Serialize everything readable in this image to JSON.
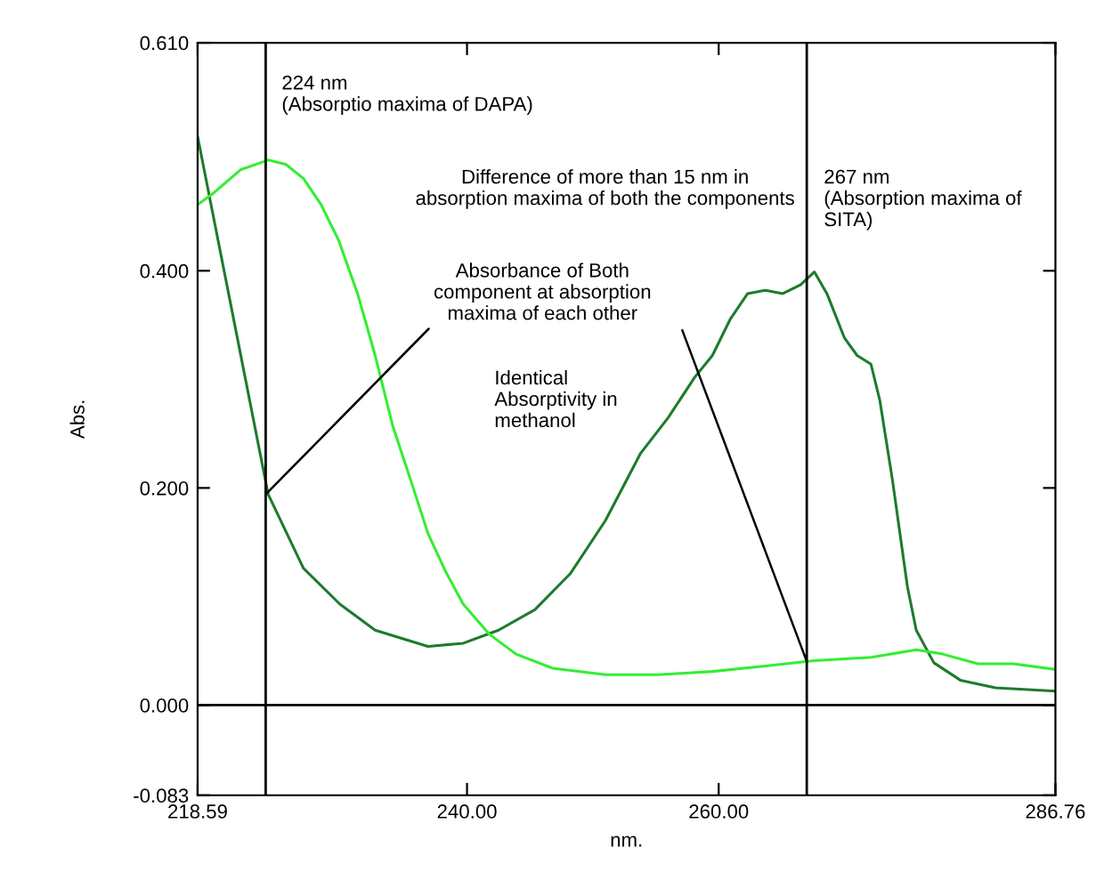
{
  "chart_data": {
    "type": "line",
    "xlabel": "nm.",
    "ylabel": "Abs.",
    "xlim": [
      218.59,
      286.76
    ],
    "ylim": [
      -0.083,
      0.61
    ],
    "xticks": [
      {
        "value": 218.59,
        "label": "218.59"
      },
      {
        "value": 240,
        "label": "240.00"
      },
      {
        "value": 260,
        "label": "260.00"
      },
      {
        "value": 286.76,
        "label": "286.76"
      }
    ],
    "yticks": [
      {
        "value": -0.083,
        "label": "-0.083"
      },
      {
        "value": 0,
        "label": "0.000"
      },
      {
        "value": 0.2,
        "label": "0.200"
      },
      {
        "value": 0.4,
        "label": "0.400"
      },
      {
        "value": 0.61,
        "label": "0.610"
      }
    ],
    "grid": false,
    "legend": false,
    "marker": "none",
    "line_style": "solid",
    "series": [
      {
        "color": "#1e7b2c",
        "x": [
          218.6,
          224.2,
          227.0,
          229.9,
          232.7,
          236.9,
          239.7,
          242.5,
          245.4,
          248.2,
          251.0,
          253.8,
          256.0,
          258.1,
          259.5,
          260.9,
          262.3,
          263.7,
          265.1,
          266.5,
          267.6,
          268.6,
          270.0,
          271.0,
          272.1,
          272.8,
          273.8,
          275.0,
          275.7,
          277.1,
          279.2,
          282.0,
          286.7
        ],
        "values": [
          0.523,
          0.194,
          0.126,
          0.093,
          0.069,
          0.054,
          0.057,
          0.069,
          0.088,
          0.121,
          0.17,
          0.232,
          0.265,
          0.302,
          0.322,
          0.355,
          0.379,
          0.382,
          0.379,
          0.387,
          0.399,
          0.379,
          0.338,
          0.322,
          0.314,
          0.281,
          0.208,
          0.109,
          0.069,
          0.039,
          0.023,
          0.016,
          0.013
        ]
      },
      {
        "color": "#33ee33",
        "x": [
          218.6,
          219.9,
          222.0,
          224.2,
          225.6,
          227.0,
          228.4,
          229.8,
          231.3,
          232.7,
          234.1,
          235.5,
          236.9,
          238.3,
          239.7,
          241.8,
          243.9,
          246.8,
          251.0,
          255.2,
          259.5,
          263.7,
          267.6,
          272.1,
          275.7,
          277.8,
          280.6,
          283.4,
          286.7
        ],
        "values": [
          0.461,
          0.472,
          0.493,
          0.502,
          0.498,
          0.485,
          0.461,
          0.428,
          0.379,
          0.322,
          0.257,
          0.208,
          0.158,
          0.123,
          0.093,
          0.065,
          0.047,
          0.034,
          0.028,
          0.028,
          0.031,
          0.036,
          0.041,
          0.044,
          0.051,
          0.047,
          0.038,
          0.038,
          0.033
        ]
      }
    ],
    "ref_lines": [
      {
        "axis": "x",
        "value": 224,
        "label": "224 nm\n(Absorptio maxima of DAPA)",
        "color": "#000000"
      },
      {
        "axis": "x",
        "value": 267,
        "label": "267 nm\n(Absorption maxima of\nSITA)",
        "color": "#000000"
      },
      {
        "axis": "y",
        "value": 0,
        "color": "#000000"
      }
    ],
    "annotations": [
      "Difference of more than 15 nm in\nabsorption maxima of both the components",
      {
        "text": "Absorbance of Both\ncomponent at absorption\nmaxima of each other",
        "x": 224,
        "y": 0.194
      },
      "Identical\nAbsorptivity in\nmethanol"
    ]
  }
}
